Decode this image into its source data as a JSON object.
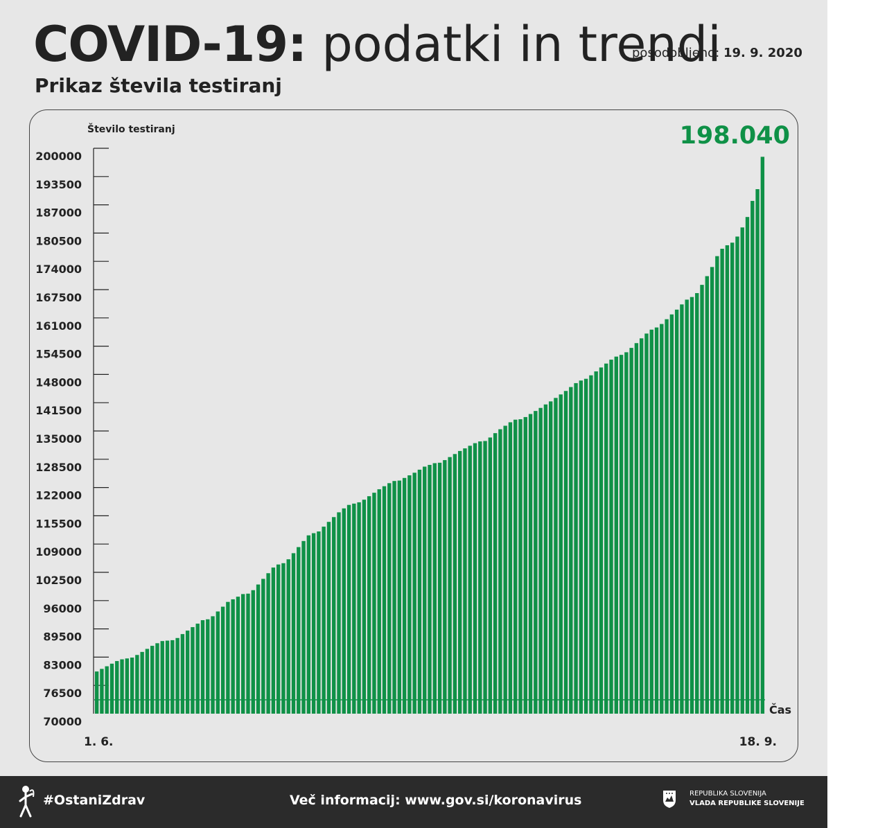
{
  "header": {
    "title_bold": "COVID-19:",
    "title_light": " podatki in trendi",
    "updated_label": "posodobljeno: ",
    "updated_date": "19. 9. 2020",
    "subtitle": "Prikaz števila testiranj"
  },
  "chart_data": {
    "type": "bar",
    "title": "Prikaz števila testiranj",
    "ylabel": "Število testiranj",
    "xlabel": "Čas",
    "ylim": [
      70000,
      200000
    ],
    "yticks": [
      200000,
      193500,
      187000,
      180500,
      174000,
      167500,
      161000,
      154500,
      148000,
      141500,
      135000,
      128500,
      122000,
      115500,
      109000,
      102500,
      96000,
      89500,
      83000,
      76500,
      70000
    ],
    "x_start_label": "1. 6.",
    "x_end_label": "18. 9.",
    "highlight_value": "198.040",
    "bar_color": "#0f9147",
    "highlight_color": "#0f9147",
    "grid": false,
    "values": [
      79700,
      80300,
      80900,
      81500,
      82100,
      82500,
      82700,
      82900,
      83500,
      84200,
      84900,
      85600,
      86200,
      86700,
      86800,
      86900,
      87400,
      88300,
      89100,
      89900,
      90700,
      91500,
      91700,
      92400,
      93500,
      94600,
      95700,
      96300,
      96900,
      97500,
      97600,
      98400,
      99700,
      101000,
      102300,
      103600,
      104300,
      104600,
      105500,
      106900,
      108300,
      109700,
      111000,
      111500,
      111900,
      113000,
      114100,
      115200,
      116300,
      117200,
      118000,
      118300,
      118600,
      119200,
      120000,
      120800,
      121600,
      122300,
      123000,
      123500,
      123600,
      124200,
      124800,
      125400,
      126100,
      126800,
      127200,
      127600,
      127700,
      128300,
      129000,
      129700,
      130400,
      131000,
      131600,
      132200,
      132600,
      132700,
      133500,
      134500,
      135400,
      136200,
      137000,
      137600,
      137700,
      138200,
      138900,
      139600,
      140300,
      141100,
      141800,
      142600,
      143400,
      144200,
      145100,
      146000,
      146600,
      147000,
      147800,
      148700,
      149600,
      150500,
      151400,
      152100,
      152500,
      153100,
      154100,
      155200,
      156300,
      157400,
      158300,
      158800,
      159600,
      160700,
      161800,
      162900,
      164100,
      165200,
      165800,
      166700,
      168600,
      170600,
      172700,
      175200,
      176900,
      177700,
      178300,
      179700,
      181800,
      184200,
      187900,
      190600,
      198040
    ]
  },
  "footer": {
    "hashtag": "#OstaniZdrav",
    "info": "Več informacij: www.gov.si/koronavirus",
    "gov_line1": "REPUBLIKA SLOVENIJA",
    "gov_line2": "VLADA REPUBLIKE SLOVENIJE"
  }
}
